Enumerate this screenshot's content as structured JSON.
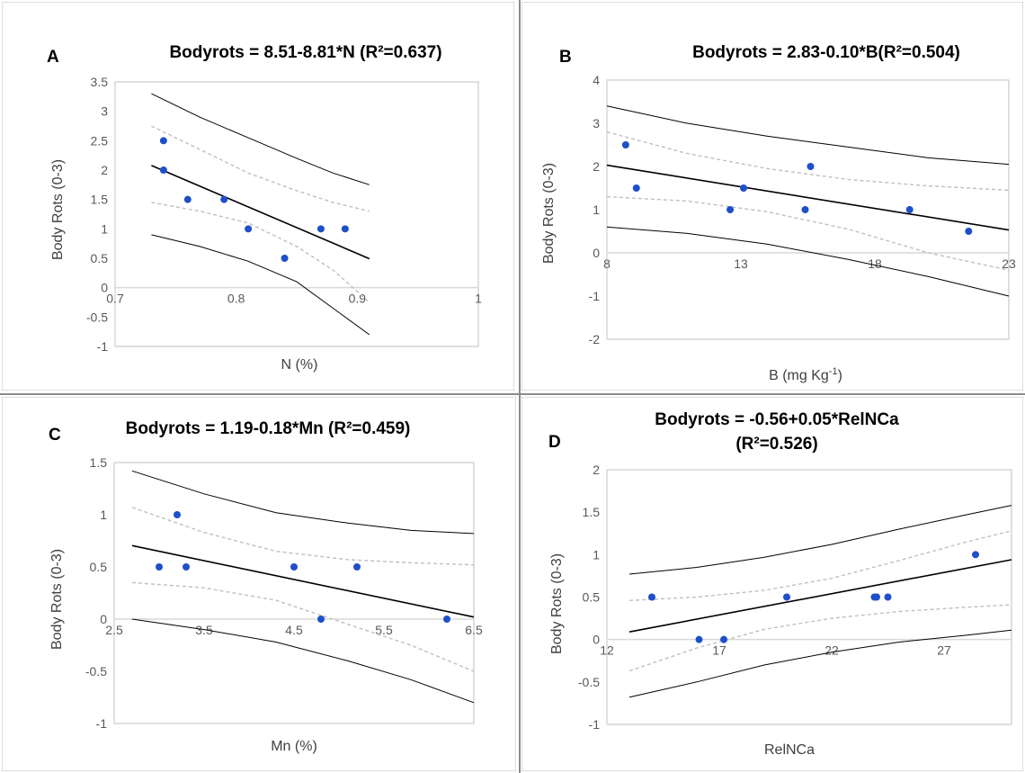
{
  "colors": {
    "point": "#1f4fc9",
    "fit_line": "#000000",
    "confidence_band": "#bfbfbf",
    "prediction_band": "#000000",
    "axis": "#d9d9d9",
    "plot_border": "#bfbfbf",
    "divider": "#8c8c8c"
  },
  "chart_data": [
    {
      "type": "scatter",
      "panel": "A",
      "title": "Bodyrots = 8.51-8.81*N (R²=0.637)",
      "xlabel": "N (%)",
      "ylabel": "Body Rots (0-3)",
      "xlim": [
        0.7,
        1.0
      ],
      "ylim": [
        -1,
        3.5
      ],
      "xticks": [
        0.7,
        0.8,
        0.9,
        1
      ],
      "xtick_labels": [
        "0.7",
        "0.8",
        "0.9",
        "1"
      ],
      "yticks": [
        -1,
        -0.5,
        0,
        0.5,
        1,
        1.5,
        2,
        2.5,
        3,
        3.5
      ],
      "ytick_labels": [
        "-1",
        "-0.5",
        "0",
        "0.5",
        "1",
        "1.5",
        "2",
        "2.5",
        "3",
        "3.5"
      ],
      "grid": false,
      "points": [
        [
          0.74,
          2.5
        ],
        [
          0.74,
          2.0
        ],
        [
          0.76,
          1.5
        ],
        [
          0.79,
          1.5
        ],
        [
          0.81,
          1.0
        ],
        [
          0.84,
          0.5
        ],
        [
          0.87,
          1.0
        ],
        [
          0.89,
          1.0
        ]
      ],
      "fit": {
        "intercept": 8.51,
        "slope": -8.81,
        "x_range": [
          0.73,
          0.91
        ]
      },
      "confidence_band": {
        "x": [
          0.73,
          0.77,
          0.81,
          0.85,
          0.88,
          0.91
        ],
        "upper": [
          2.75,
          2.35,
          1.95,
          1.65,
          1.45,
          1.3
        ],
        "lower": [
          1.45,
          1.3,
          1.1,
          0.7,
          0.3,
          -0.25
        ]
      },
      "prediction_band": {
        "x": [
          0.73,
          0.77,
          0.81,
          0.85,
          0.88,
          0.91
        ],
        "upper": [
          3.3,
          2.9,
          2.55,
          2.2,
          1.95,
          1.75
        ],
        "lower": [
          0.9,
          0.7,
          0.45,
          0.1,
          -0.35,
          -0.8
        ]
      }
    },
    {
      "type": "scatter",
      "panel": "B",
      "title": "Bodyrots = 2.83-0.10*B(R²=0.504)",
      "xlabel": "B (mg Kg",
      "xlabel_sup": "-1",
      "xlabel_suffix": ")",
      "ylabel": "Body Rots (0-3)",
      "xlim": [
        8,
        23
      ],
      "ylim": [
        -2,
        4
      ],
      "xticks": [
        8,
        13,
        18,
        23
      ],
      "xtick_labels": [
        "8",
        "13",
        "18",
        "23"
      ],
      "yticks": [
        -2,
        -1,
        0,
        1,
        2,
        3,
        4
      ],
      "ytick_labels": [
        "-2",
        "-1",
        "0",
        "1",
        "2",
        "3",
        "4"
      ],
      "grid": false,
      "points": [
        [
          8.7,
          2.5
        ],
        [
          9.1,
          1.5
        ],
        [
          12.6,
          1.0
        ],
        [
          13.1,
          1.5
        ],
        [
          15.4,
          1.0
        ],
        [
          15.6,
          2.0
        ],
        [
          19.3,
          1.0
        ],
        [
          21.5,
          0.5
        ]
      ],
      "fit": {
        "intercept": 2.83,
        "slope": -0.1,
        "x_range": [
          8,
          23
        ]
      },
      "confidence_band": {
        "x": [
          8,
          11,
          14,
          17,
          20,
          23
        ],
        "upper": [
          2.8,
          2.3,
          1.95,
          1.7,
          1.55,
          1.45
        ],
        "lower": [
          1.3,
          1.2,
          0.95,
          0.55,
          0.0,
          -0.4
        ]
      },
      "prediction_band": {
        "x": [
          8,
          11,
          14,
          17,
          20,
          23
        ],
        "upper": [
          3.4,
          3.0,
          2.7,
          2.45,
          2.2,
          2.05
        ],
        "lower": [
          0.6,
          0.45,
          0.2,
          -0.15,
          -0.55,
          -1.0
        ]
      }
    },
    {
      "type": "scatter",
      "panel": "C",
      "title": "Bodyrots = 1.19-0.18*Mn (R²=0.459)",
      "xlabel": "Mn (%)",
      "ylabel": "Body Rots (0-3)",
      "xlim": [
        2.5,
        6.5
      ],
      "ylim": [
        -1,
        1.5
      ],
      "xticks": [
        2.5,
        3.5,
        4.5,
        5.5,
        6.5
      ],
      "xtick_labels": [
        "2.5",
        "3.5",
        "4.5",
        "5.5",
        "6.5"
      ],
      "yticks": [
        -1,
        -0.5,
        0,
        0.5,
        1,
        1.5
      ],
      "ytick_labels": [
        "-1",
        "-0.5",
        "0",
        "0.5",
        "1",
        "1.5"
      ],
      "grid": false,
      "points": [
        [
          3.0,
          0.5
        ],
        [
          3.2,
          1.0
        ],
        [
          3.3,
          0.5
        ],
        [
          4.5,
          0.5
        ],
        [
          4.8,
          0.0
        ],
        [
          5.2,
          0.5
        ],
        [
          6.2,
          0.0
        ]
      ],
      "fit": {
        "intercept": 1.19,
        "slope": -0.18,
        "x_range": [
          2.7,
          6.5
        ]
      },
      "confidence_band": {
        "x": [
          2.7,
          3.5,
          4.3,
          5.1,
          5.8,
          6.5
        ],
        "upper": [
          1.07,
          0.83,
          0.65,
          0.57,
          0.54,
          0.52
        ],
        "lower": [
          0.35,
          0.3,
          0.18,
          -0.05,
          -0.25,
          -0.5
        ]
      },
      "prediction_band": {
        "x": [
          2.7,
          3.5,
          4.3,
          5.1,
          5.8,
          6.5
        ],
        "upper": [
          1.42,
          1.2,
          1.02,
          0.92,
          0.85,
          0.82
        ],
        "lower": [
          0.0,
          -0.1,
          -0.22,
          -0.4,
          -0.58,
          -0.8
        ]
      }
    },
    {
      "type": "scatter",
      "panel": "D",
      "title": "Bodyrots = -0.56+0.05*RelNCa",
      "title_line2": "(R²=0.526)",
      "xlabel": "RelNCa",
      "ylabel": "Body Rots (0-3)",
      "xlim": [
        12,
        30
      ],
      "ylim": [
        -1,
        2
      ],
      "xticks": [
        12,
        17,
        22,
        27
      ],
      "xtick_labels": [
        "12",
        "17",
        "22",
        "27"
      ],
      "yticks": [
        -1,
        -0.5,
        0,
        0.5,
        1,
        1.5,
        2
      ],
      "ytick_labels": [
        "-1",
        "-0.5",
        "0",
        "0.5",
        "1",
        "1.5",
        "2"
      ],
      "grid": false,
      "points": [
        [
          14.0,
          0.5
        ],
        [
          16.1,
          0.0
        ],
        [
          17.2,
          0.0
        ],
        [
          20.0,
          0.5
        ],
        [
          23.9,
          0.5
        ],
        [
          24.0,
          0.5
        ],
        [
          24.5,
          0.5
        ],
        [
          28.4,
          1.0
        ]
      ],
      "fit": {
        "intercept": -0.56,
        "slope": 0.05,
        "x_range": [
          13,
          30
        ]
      },
      "confidence_band": {
        "x": [
          13,
          16,
          19,
          22,
          25,
          28,
          30
        ],
        "upper": [
          0.46,
          0.5,
          0.58,
          0.72,
          0.93,
          1.15,
          1.28
        ],
        "lower": [
          -0.37,
          -0.1,
          0.12,
          0.25,
          0.33,
          0.38,
          0.41
        ]
      },
      "prediction_band": {
        "x": [
          13,
          16,
          19,
          22,
          25,
          28,
          30
        ],
        "upper": [
          0.77,
          0.85,
          0.97,
          1.12,
          1.3,
          1.47,
          1.58
        ],
        "lower": [
          -0.68,
          -0.5,
          -0.3,
          -0.15,
          -0.03,
          0.05,
          0.11
        ]
      }
    }
  ]
}
